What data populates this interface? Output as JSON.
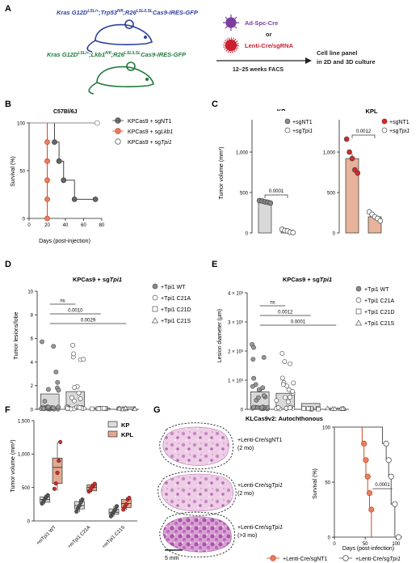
{
  "panel_labels": [
    "A",
    "B",
    "C",
    "D",
    "E",
    "F",
    "G"
  ],
  "panel_a": {
    "genotype_kp": [
      "Kras G12D",
      "LSL/+",
      ";Trp53",
      "fl/fl",
      ";R26",
      "LSL/LSL",
      "Cas9-IRES-GFP"
    ],
    "genotype_kpl": [
      "Kras G12D",
      "LSL/+",
      ";Lkb1",
      "fl/fl",
      ";R26",
      "LSL/LSL",
      "Cas9-IRES-GFP"
    ],
    "virus1": "Ad-Spc-Cre",
    "or": "or",
    "virus2": "Lenti-Cre/sgRNA",
    "timeline": "12–25 weeks FACS",
    "outcome_line1": "Cell line panel",
    "outcome_line2": "in 2D and 3D culture",
    "colors": {
      "kp": "#2b3f9e",
      "kpl": "#1f7a3a",
      "virus1": "#7b3fa0",
      "virus2": "#c8202f"
    }
  },
  "panel_b": {
    "title": "C57Bl/6J",
    "ylabel": "Survival (%)",
    "xlabel": "Days (post-injection)",
    "legend": [
      {
        "pre": "KPCas9 + sgNT1",
        "it": ""
      },
      {
        "pre": "KPCas9 + sg",
        "it": "Lkb1"
      },
      {
        "pre": "KPCas9 + sg",
        "it": "Tpi1"
      }
    ]
  },
  "panel_c": {
    "ylabel": "Tumor volume (mm³)",
    "kp_title": "KP",
    "kpl_title": "KPL",
    "kp_p": "0.0001",
    "kpl_p": "0.0012",
    "legend": [
      {
        "pre": "+sgNT1",
        "it": ""
      },
      {
        "pre": "+sg",
        "it": "Tpi1"
      }
    ]
  },
  "panel_d": {
    "title_pre": "KPCas9 + sg",
    "title_it": "Tpi1",
    "ylabel": "Tumor lesions/lobe",
    "stats": [
      "ns",
      "0.0010",
      "0.0029"
    ]
  },
  "panel_e": {
    "title_pre": "KPCas9 + sg",
    "title_it": "Tpi1",
    "ylabel": "Lesion diameter (μm)",
    "stats": [
      "ns",
      "0.0012",
      "0.0001"
    ]
  },
  "panel_de_legend": [
    "+Tpi1 WT",
    "+Tpi1 C21A",
    "+Tpi1 C21D",
    "+Tpi1 C21S"
  ],
  "panel_f": {
    "ylabel": "Tumor volume (mm³)",
    "legend": [
      "KP",
      "KPL"
    ]
  },
  "panel_g": {
    "title": "KLCas9v2: Autochthonous",
    "hist_labels": [
      {
        "l1": "+Lenti-Cre/sgNT1",
        "it": "",
        "l2": "(2 mo)"
      },
      {
        "l1": "+Lenti-Cre/sg",
        "it": "Tpi1",
        "l2": "(2 mo)"
      },
      {
        "l1": "+Lenti-Cre/sg",
        "it": "Tpi1",
        "l2": "(>3 mo)"
      }
    ],
    "scale_bar": "5 mm",
    "ylabel": "Survival (%)",
    "xlabel": "Days (post-infection)",
    "p": "0.0001",
    "legend": [
      {
        "pre": "+Lenti-Cre/sgNT1",
        "it": ""
      },
      {
        "pre": "+Lenti-Cre/sg",
        "it": "Tpi1"
      }
    ]
  },
  "chart_data": [
    {
      "panel": "B",
      "type": "line",
      "title": "C57Bl/6J",
      "xlabel": "Days (post-injection)",
      "ylabel": "Survival (%)",
      "xlim": [
        0,
        80
      ],
      "ylim": [
        0,
        100
      ],
      "x_ticks": [
        "0",
        "20",
        "40",
        "60",
        "80"
      ],
      "y_ticks": [
        "0",
        "50",
        "100"
      ],
      "series": [
        {
          "name": "KPCas9 + sgNT1",
          "color": "#444444",
          "steps": [
            [
              0,
              100
            ],
            [
              28,
              100
            ],
            [
              28,
              80
            ],
            [
              33,
              80
            ],
            [
              33,
              60
            ],
            [
              38,
              60
            ],
            [
              38,
              40
            ],
            [
              50,
              40
            ],
            [
              50,
              20
            ],
            [
              73,
              20
            ]
          ],
          "marks": [
            [
              28,
              80
            ],
            [
              33,
              60
            ],
            [
              38,
              40
            ],
            [
              50,
              20
            ],
            [
              73,
              20
            ]
          ]
        },
        {
          "name": "KPCas9 + sgLkb1",
          "color": "#cc4a2e",
          "steps": [
            [
              0,
              100
            ],
            [
              20,
              100
            ],
            [
              20,
              0
            ],
            [
              22,
              0
            ]
          ],
          "marks": [
            [
              20,
              80
            ],
            [
              20,
              60
            ],
            [
              20,
              40
            ],
            [
              20,
              20
            ],
            [
              20,
              0
            ]
          ]
        },
        {
          "name": "KPCas9 + sgTpi1",
          "color": "#888888",
          "steps": [
            [
              0,
              100
            ],
            [
              75,
              100
            ]
          ],
          "marks": [
            [
              75,
              100
            ]
          ]
        }
      ]
    },
    {
      "panel": "C-KP",
      "type": "bar",
      "title": "KP",
      "ylabel": "Tumor volume (mm³)",
      "ylim": [
        0,
        1400
      ],
      "y_ticks": [
        "0",
        "500",
        "1,000"
      ],
      "categories": [
        "+sgNT1",
        "+sgTpi1"
      ],
      "values": [
        380,
        20
      ],
      "points": [
        [
          400,
          395,
          385,
          380,
          370
        ],
        [
          45,
          30,
          25,
          10,
          5
        ]
      ]
    },
    {
      "panel": "C-KPL",
      "type": "bar",
      "title": "KPL",
      "ylim": [
        0,
        1400
      ],
      "y_ticks": [
        "0",
        "500",
        "1,000"
      ],
      "categories": [
        "+sgNT1",
        "+sgTpi1"
      ],
      "values": [
        920,
        200
      ],
      "points": [
        [
          1160,
          1000,
          920,
          780,
          740
        ],
        [
          260,
          230,
          200,
          180,
          150
        ]
      ]
    },
    {
      "panel": "D",
      "type": "bar",
      "ylabel": "Tumor lesions/lobe",
      "ylim": [
        0,
        10
      ],
      "y_ticks": [
        "0",
        "2",
        "4",
        "6",
        "8",
        "10"
      ],
      "categories": [
        "+Tpi1 WT",
        "+Tpi1 C21A",
        "+Tpi1 C21D",
        "+Tpi1 C21S"
      ],
      "values": [
        1.3,
        1.5,
        0.1,
        0.2
      ]
    },
    {
      "panel": "E",
      "type": "bar",
      "ylabel": "Lesion diameter (μm)",
      "ylim": [
        0,
        4000
      ],
      "y_ticks": [
        "0",
        "1 × 10³",
        "2 × 10³",
        "3 × 10³",
        "4 × 10³"
      ],
      "categories": [
        "+Tpi1 WT",
        "+Tpi1 C21A",
        "+Tpi1 C21D",
        "+Tpi1 C21S"
      ],
      "values": [
        600,
        550,
        200,
        40
      ]
    },
    {
      "panel": "F",
      "type": "box",
      "ylabel": "Tumor volume (mm³)",
      "ylim": [
        0,
        1500
      ],
      "y_ticks": [
        "0",
        "500",
        "1,000",
        "1,500"
      ],
      "categories": [
        "+mTpi1 WT",
        "+mTpi1 C21A",
        "+mTpi1 C21S"
      ],
      "series": [
        {
          "name": "KP",
          "median": [
            320,
            230,
            130
          ]
        },
        {
          "name": "KPL",
          "median": [
            800,
            500,
            260
          ]
        }
      ]
    },
    {
      "panel": "G",
      "type": "line",
      "ylabel": "Survival (%)",
      "xlabel": "Days (post-infection)",
      "xlim": [
        0,
        100
      ],
      "ylim": [
        0,
        100
      ],
      "x_ticks": [
        "0",
        "50",
        "100"
      ],
      "y_ticks": [
        "0",
        "50",
        "100"
      ],
      "series": [
        {
          "name": "+Lenti-Cre/sgNT1",
          "color": "#cc4a2e",
          "steps": [
            [
              0,
              100
            ],
            [
              45,
              100
            ],
            [
              45,
              85
            ],
            [
              48,
              85
            ],
            [
              48,
              70
            ],
            [
              51,
              70
            ],
            [
              51,
              55
            ],
            [
              54,
              55
            ],
            [
              54,
              40
            ],
            [
              57,
              40
            ],
            [
              57,
              25
            ],
            [
              60,
              25
            ],
            [
              60,
              0
            ]
          ]
        },
        {
          "name": "+Lenti-Cre/sgTpi1",
          "color": "#555555",
          "steps": [
            [
              0,
              100
            ],
            [
              78,
              100
            ],
            [
              78,
              85
            ],
            [
              84,
              85
            ],
            [
              84,
              70
            ],
            [
              88,
              70
            ],
            [
              88,
              55
            ],
            [
              92,
              55
            ],
            [
              92,
              30
            ],
            [
              98,
              30
            ],
            [
              98,
              0
            ],
            [
              104,
              0
            ]
          ]
        }
      ]
    }
  ]
}
